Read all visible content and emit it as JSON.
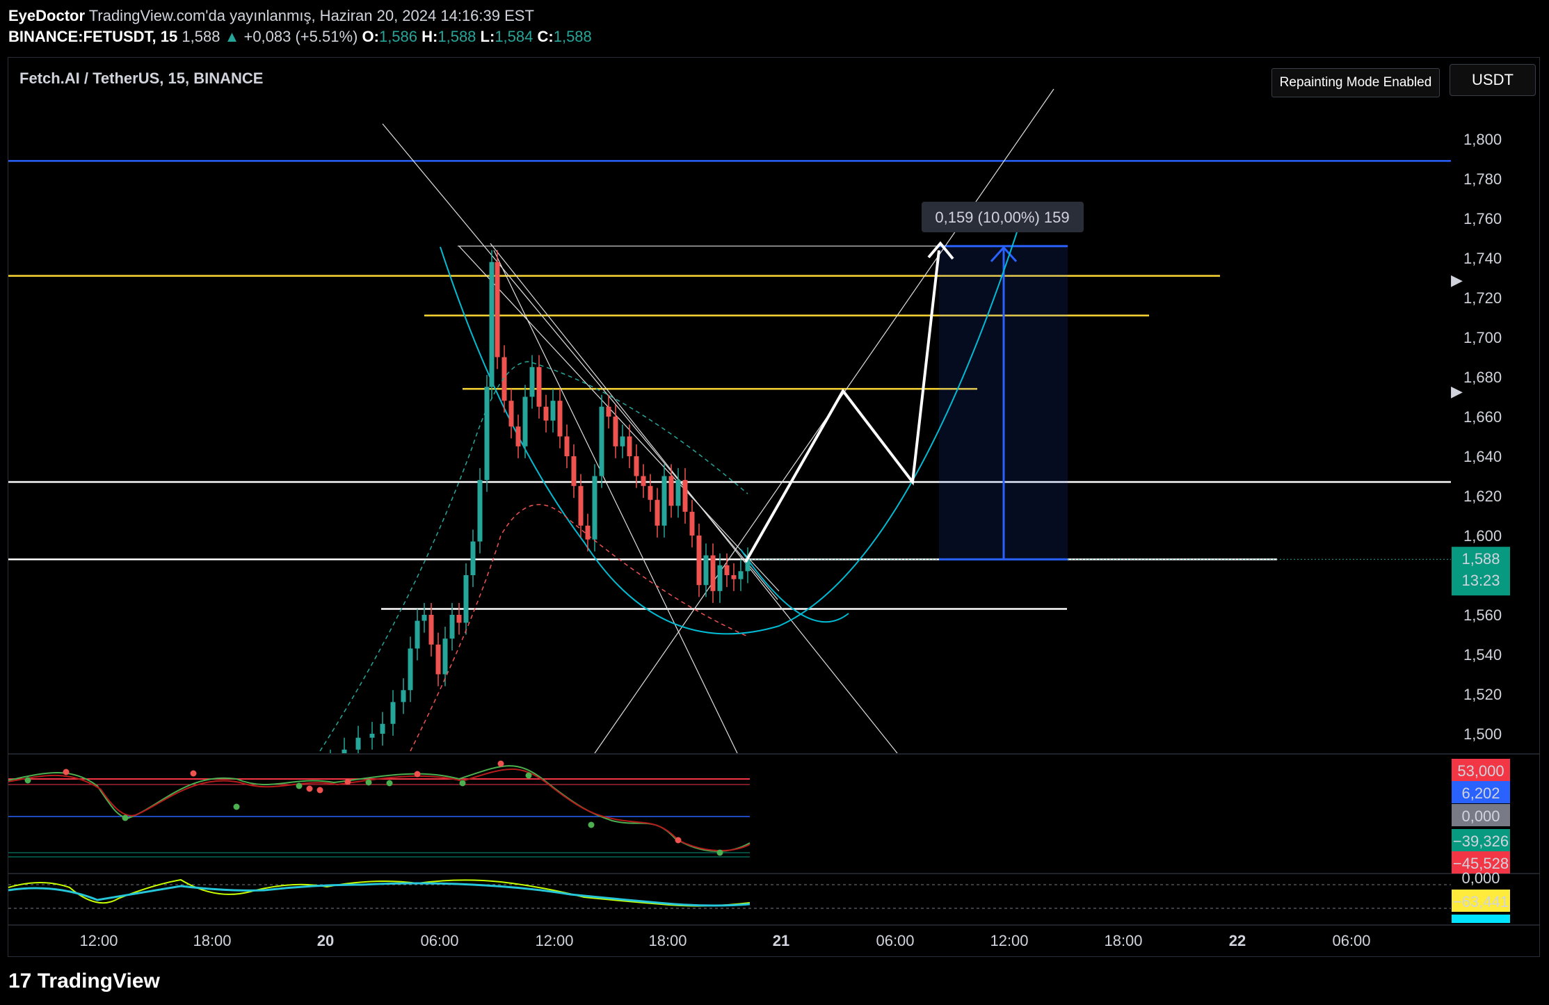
{
  "header": {
    "author": "EyeDoctor",
    "published": "TradingView.com'da yayınlanmış, Haziran 20, 2024 14:16:39 EST",
    "ticker": "BINANCE:FETUSDT, 15",
    "last": "1,588",
    "change": "+0,083 (+5.51%)",
    "o_label": "O:",
    "o": "1,586",
    "h_label": "H:",
    "h": "1,588",
    "l_label": "L:",
    "l": "1,584",
    "c_label": "C:",
    "c": "1,588"
  },
  "chart_title": "Fetch.AI / TetherUS, 15, BINANCE",
  "repaint_badge": "Repainting Mode Enabled",
  "currency_button": "USDT",
  "brand": "TradingView",
  "colors": {
    "up": "#26a69a",
    "down": "#ef5350",
    "blue_line": "#2962ff",
    "yellow_line": "#fdd835",
    "curve": "#00bcd4"
  },
  "chart_data": {
    "type": "candlestick",
    "title": "Fetch.AI / TetherUS, 15, BINANCE",
    "ylim": [
      1.49,
      1.83
    ],
    "y_ticks": [
      "1,800",
      "1,780",
      "1,760",
      "1,740",
      "1,720",
      "1,700",
      "1,680",
      "1,660",
      "1,640",
      "1,620",
      "1,600",
      "1,560",
      "1,540",
      "1,520",
      "1,500"
    ],
    "x_ticks": [
      "12:00",
      "18:00",
      "20",
      "06:00",
      "12:00",
      "18:00",
      "21",
      "06:00",
      "12:00",
      "18:00",
      "22",
      "06:00"
    ],
    "last_price_label": "1,588",
    "countdown": "13:23",
    "horizontal_levels": [
      {
        "price": 1.789,
        "color": "blue"
      },
      {
        "price": 1.731,
        "color": "yellow"
      },
      {
        "price": 1.711,
        "color": "yellow"
      },
      {
        "price": 1.674,
        "color": "yellow"
      },
      {
        "price": 1.627,
        "color": "white"
      },
      {
        "price": 1.588,
        "color": "white"
      },
      {
        "price": 1.563,
        "color": "white"
      },
      {
        "price": 1.746,
        "color": "white"
      }
    ],
    "measure_label": "0,159 (10,00%) 159",
    "measure_from": 1.588,
    "measure_to": 1.746,
    "oscillator_labels": [
      {
        "text": "53,000",
        "bg": "#f23645"
      },
      {
        "text": "6,202",
        "bg": "#2962ff"
      },
      {
        "text": "0,000",
        "bg": "#787b86"
      },
      {
        "text": "−39,326",
        "bg": "#089981"
      },
      {
        "text": "−45,528",
        "bg": "#f23645"
      }
    ],
    "oscillator2_labels": [
      {
        "text": "0,000",
        "bg": "none"
      },
      {
        "text": "−63,441",
        "bg": "#ffeb3b"
      }
    ]
  }
}
